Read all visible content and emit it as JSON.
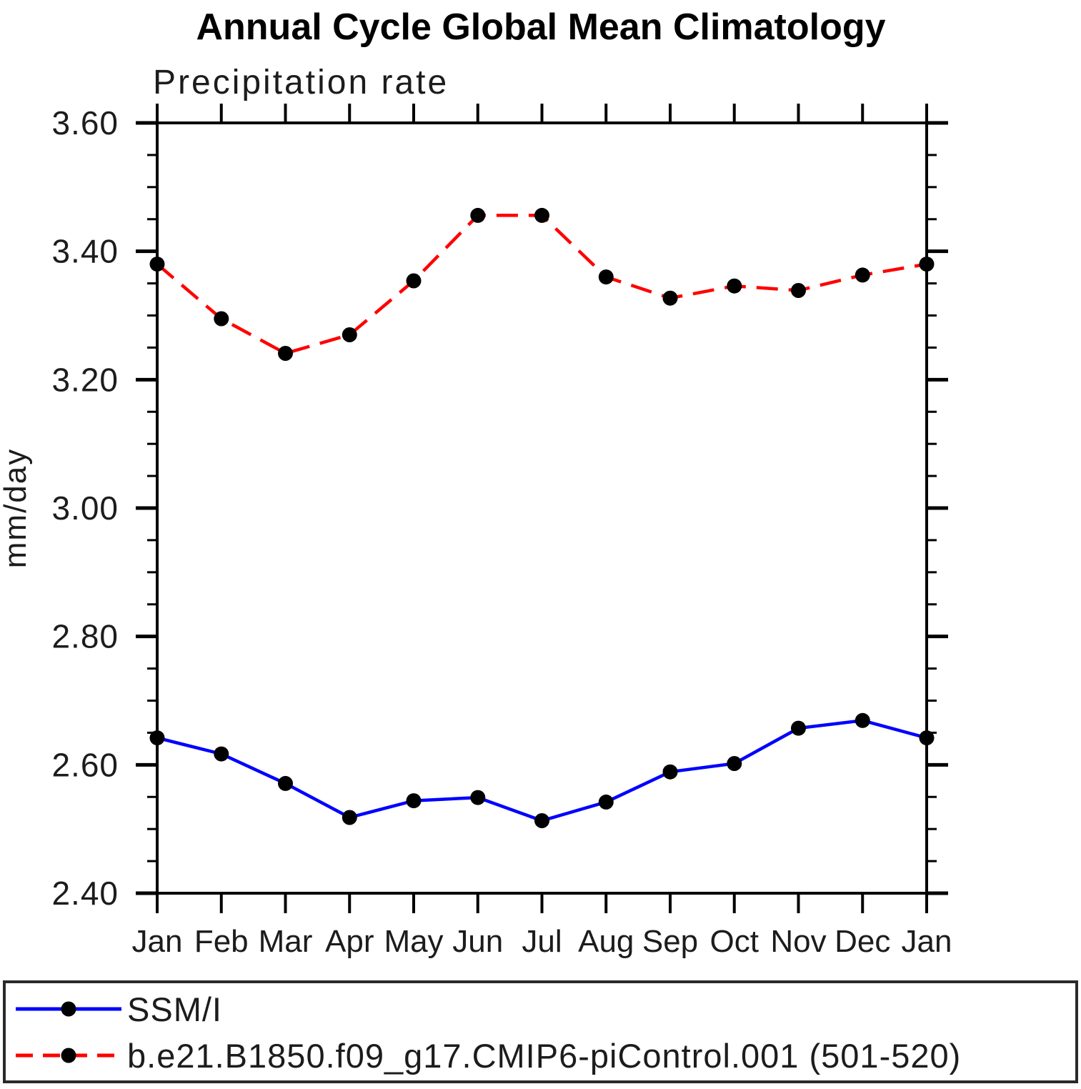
{
  "page": {
    "background": "#ffffff"
  },
  "chart_data": {
    "type": "line",
    "title": "Annual Cycle Global Mean Climatology",
    "subtitle": "Precipitation rate",
    "ylabel": "mm/day",
    "xlabel": "",
    "categories": [
      "Jan",
      "Feb",
      "Mar",
      "Apr",
      "May",
      "Jun",
      "Jul",
      "Aug",
      "Sep",
      "Oct",
      "Nov",
      "Dec",
      "Jan"
    ],
    "ylim": [
      2.4,
      3.6
    ],
    "ytick_interval": 0.2,
    "yminor_interval": 0.05,
    "ytick_labels": [
      "2.40",
      "2.60",
      "2.80",
      "3.00",
      "3.20",
      "3.40",
      "3.60"
    ],
    "grid": false,
    "legend_position": "bottom-box",
    "axis_color": "#000000",
    "series": [
      {
        "name": "SSM/I",
        "line_color": "#0000ff",
        "line_style": "solid",
        "marker": "filled-circle",
        "marker_color": "#000000",
        "values": [
          2.642,
          2.617,
          2.571,
          2.518,
          2.544,
          2.549,
          2.513,
          2.542,
          2.589,
          2.602,
          2.657,
          2.669,
          2.642
        ]
      },
      {
        "name": "b.e21.B1850.f09_g17.CMIP6-piControl.001 (501-520)",
        "line_color": "#ff0000",
        "line_style": "dashed",
        "marker": "filled-circle",
        "marker_color": "#000000",
        "values": [
          3.38,
          3.295,
          3.241,
          3.27,
          3.354,
          3.456,
          3.456,
          3.36,
          3.327,
          3.346,
          3.339,
          3.363,
          3.38
        ]
      }
    ]
  }
}
